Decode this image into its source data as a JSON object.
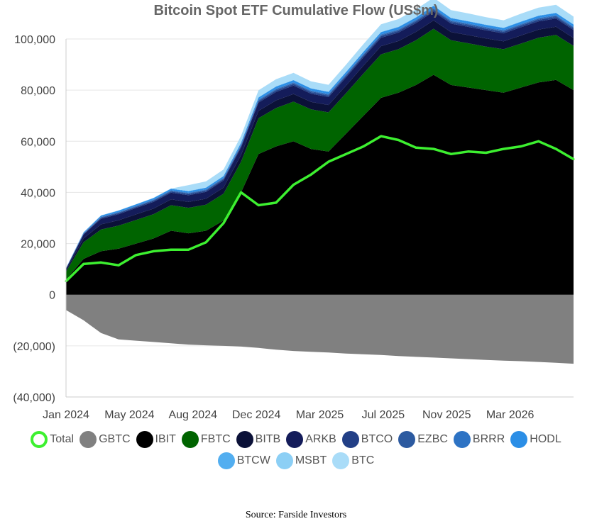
{
  "chart_data": {
    "type": "area",
    "title": "Bitcoin Spot ETF Cumulative Flow (US$m)",
    "source": "Source: Farside Investors",
    "xlabel": "",
    "ylabel": "",
    "ylim": [
      -40000,
      100000
    ],
    "grid": true,
    "legend_position": "bottom",
    "x_ticks": [
      "Jan 2024",
      "May 2024",
      "Aug 2024",
      "Dec 2024",
      "Mar 2025",
      "Jul 2025",
      "Nov 2025",
      "Mar 2026"
    ],
    "y_ticks": [
      "100,000",
      "80,000",
      "60,000",
      "40,000",
      "20,000",
      "0",
      "(20,000)",
      "(40,000)"
    ],
    "y_tick_values": [
      100000,
      80000,
      60000,
      40000,
      20000,
      0,
      -20000,
      -40000
    ],
    "x": [
      "2024-01",
      "2024-02",
      "2024-03",
      "2024-04",
      "2024-05",
      "2024-06",
      "2024-07",
      "2024-08",
      "2024-09",
      "2024-10",
      "2024-11",
      "2024-12",
      "2025-01",
      "2025-02",
      "2025-03",
      "2025-04",
      "2025-05",
      "2025-06",
      "2025-07",
      "2025-08",
      "2025-09",
      "2025-10",
      "2025-11",
      "2025-12",
      "2026-01",
      "2026-02",
      "2026-03",
      "2026-04",
      "2026-05",
      "2026-06"
    ],
    "series": [
      {
        "name": "GBTC",
        "color": "#808080",
        "values": [
          -6000,
          -10000,
          -15000,
          -17500,
          -18000,
          -18500,
          -19000,
          -19500,
          -19800,
          -20000,
          -20300,
          -20800,
          -21500,
          -22000,
          -22300,
          -22600,
          -23000,
          -23300,
          -23600,
          -24000,
          -24300,
          -24600,
          -24900,
          -25200,
          -25500,
          -25800,
          -26000,
          -26300,
          -26600,
          -27000
        ]
      },
      {
        "name": "IBIT",
        "color": "#000000",
        "values": [
          6000,
          14000,
          17000,
          18000,
          20000,
          22000,
          25000,
          24000,
          25000,
          29000,
          40000,
          55000,
          58000,
          60000,
          57000,
          56000,
          63000,
          70000,
          77000,
          79000,
          82000,
          86000,
          82000,
          81000,
          80000,
          79000,
          81000,
          83000,
          84000,
          80000
        ]
      },
      {
        "name": "FBTC",
        "color": "#006400",
        "values": [
          3000,
          6500,
          8500,
          9000,
          9200,
          9500,
          10000,
          10000,
          10200,
          10500,
          12000,
          14000,
          15000,
          15500,
          15500,
          15300,
          15800,
          16500,
          17000,
          17000,
          17500,
          18000,
          17500,
          17300,
          17000,
          17000,
          17200,
          17500,
          17600,
          17300
        ]
      },
      {
        "name": "BITB",
        "color": "#0b1138",
        "values": [
          600,
          1500,
          2000,
          2100,
          2200,
          2200,
          2300,
          2300,
          2300,
          2400,
          2600,
          2900,
          3000,
          3000,
          2900,
          2900,
          3000,
          3100,
          3200,
          3200,
          3300,
          3300,
          3200,
          3200,
          3200,
          3100,
          3200,
          3200,
          3200,
          3100
        ]
      },
      {
        "name": "ARKB",
        "color": "#141c5a",
        "values": [
          500,
          1500,
          2200,
          2400,
          2500,
          2600,
          2600,
          2600,
          2700,
          2800,
          3000,
          3200,
          3300,
          3300,
          3200,
          3100,
          3200,
          3300,
          3300,
          3300,
          3400,
          3400,
          3300,
          3200,
          3200,
          3100,
          3200,
          3200,
          3200,
          3100
        ]
      },
      {
        "name": "BTCO",
        "color": "#223f86",
        "values": [
          100,
          250,
          350,
          380,
          400,
          420,
          430,
          440,
          450,
          460,
          500,
          550,
          560,
          560,
          550,
          540,
          560,
          580,
          600,
          600,
          610,
          620,
          600,
          600,
          590,
          580,
          590,
          600,
          600,
          590
        ]
      },
      {
        "name": "EZBC",
        "color": "#2c5aa0",
        "values": [
          60,
          150,
          220,
          250,
          260,
          270,
          280,
          290,
          300,
          310,
          340,
          380,
          390,
          390,
          380,
          370,
          380,
          390,
          400,
          400,
          410,
          420,
          400,
          400,
          390,
          380,
          390,
          400,
          400,
          390
        ]
      },
      {
        "name": "BRRR",
        "color": "#2d73c4",
        "values": [
          40,
          120,
          180,
          200,
          210,
          220,
          230,
          240,
          250,
          260,
          280,
          300,
          310,
          310,
          300,
          300,
          310,
          320,
          330,
          330,
          340,
          340,
          330,
          330,
          320,
          320,
          330,
          330,
          330,
          320
        ]
      },
      {
        "name": "HODL",
        "color": "#2b8ee6",
        "values": [
          100,
          300,
          450,
          500,
          520,
          540,
          560,
          580,
          600,
          620,
          700,
          780,
          800,
          800,
          780,
          760,
          780,
          800,
          820,
          820,
          830,
          840,
          820,
          810,
          800,
          790,
          800,
          810,
          810,
          800
        ]
      },
      {
        "name": "BTCW",
        "color": "#52aef0",
        "values": [
          20,
          60,
          90,
          100,
          100,
          110,
          110,
          110,
          110,
          110,
          120,
          130,
          130,
          130,
          130,
          130,
          130,
          130,
          130,
          130,
          130,
          130,
          130,
          130,
          130,
          130,
          130,
          130,
          130,
          130
        ]
      },
      {
        "name": "MSBT",
        "color": "#8ccff5",
        "values": [
          0,
          0,
          0,
          0,
          0,
          0,
          0,
          0,
          0,
          0,
          0,
          0,
          0,
          0,
          0,
          0,
          0,
          0,
          0,
          0,
          0,
          0,
          0,
          0,
          0,
          30,
          60,
          80,
          100,
          120
        ]
      },
      {
        "name": "BTC",
        "color": "#a9dcf8",
        "values": [
          0,
          0,
          0,
          0,
          0,
          0,
          0,
          2300,
          2400,
          2500,
          2600,
          2700,
          2800,
          2800,
          2700,
          2700,
          2800,
          2900,
          3000,
          3000,
          3100,
          3100,
          3000,
          3000,
          2900,
          2900,
          3000,
          3000,
          3000,
          2900
        ]
      },
      {
        "name": "Total",
        "color": "#3df030",
        "line": true,
        "values": [
          5300,
          12000,
          12600,
          11500,
          15500,
          17000,
          17600,
          17600,
          20500,
          28000,
          40000,
          35000,
          36000,
          43000,
          47000,
          52000,
          55000,
          58000,
          62000,
          60500,
          57500,
          57000,
          55000,
          56000,
          55500,
          57000,
          58000,
          60000,
          57000,
          53000
        ]
      }
    ]
  },
  "legend": [
    {
      "name": "Total",
      "color": "#3df030",
      "style": "ring"
    },
    {
      "name": "GBTC",
      "color": "#808080",
      "style": "fill"
    },
    {
      "name": "IBIT",
      "color": "#000000",
      "style": "fill"
    },
    {
      "name": "FBTC",
      "color": "#006400",
      "style": "fill"
    },
    {
      "name": "BITB",
      "color": "#0b1138",
      "style": "fill"
    },
    {
      "name": "ARKB",
      "color": "#141c5a",
      "style": "fill"
    },
    {
      "name": "BTCO",
      "color": "#223f86",
      "style": "fill"
    },
    {
      "name": "EZBC",
      "color": "#2c5aa0",
      "style": "fill"
    },
    {
      "name": "BRRR",
      "color": "#2d73c4",
      "style": "fill"
    },
    {
      "name": "HODL",
      "color": "#2b8ee6",
      "style": "fill"
    },
    {
      "name": "BTCW",
      "color": "#52aef0",
      "style": "fill"
    },
    {
      "name": "MSBT",
      "color": "#8ccff5",
      "style": "fill"
    },
    {
      "name": "BTC",
      "color": "#a9dcf8",
      "style": "fill"
    }
  ]
}
